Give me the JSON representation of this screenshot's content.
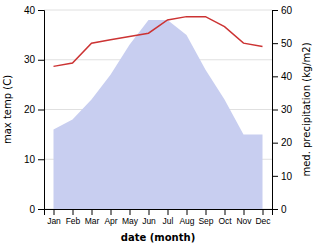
{
  "chart_data": {
    "type": "line",
    "xlabel": "date (month)",
    "ylabel": "max temp (C)",
    "y2label": "med. precipitation (kg/m2)",
    "categories": [
      "Jan",
      "Feb",
      "Mar",
      "Apr",
      "May",
      "Jun",
      "Jul",
      "Aug",
      "Sep",
      "Oct",
      "Nov",
      "Dec"
    ],
    "series": [
      {
        "type": "area",
        "color": "#c8cef0",
        "values": [
          16,
          18,
          22,
          27,
          33,
          38,
          38,
          35,
          28,
          22,
          15,
          15
        ]
      },
      {
        "type": "line",
        "color": "#cc3333",
        "axis": "y2",
        "values": [
          43,
          44,
          50,
          51,
          52,
          53,
          57,
          58,
          58,
          55,
          50,
          49
        ]
      }
    ],
    "ylim": [
      0,
      40
    ],
    "yticks": [
      0,
      10,
      20,
      30,
      40
    ],
    "y2lim": [
      0,
      60
    ],
    "y2ticks": [
      0,
      10,
      20,
      30,
      40,
      50,
      60
    ],
    "grid": true
  }
}
